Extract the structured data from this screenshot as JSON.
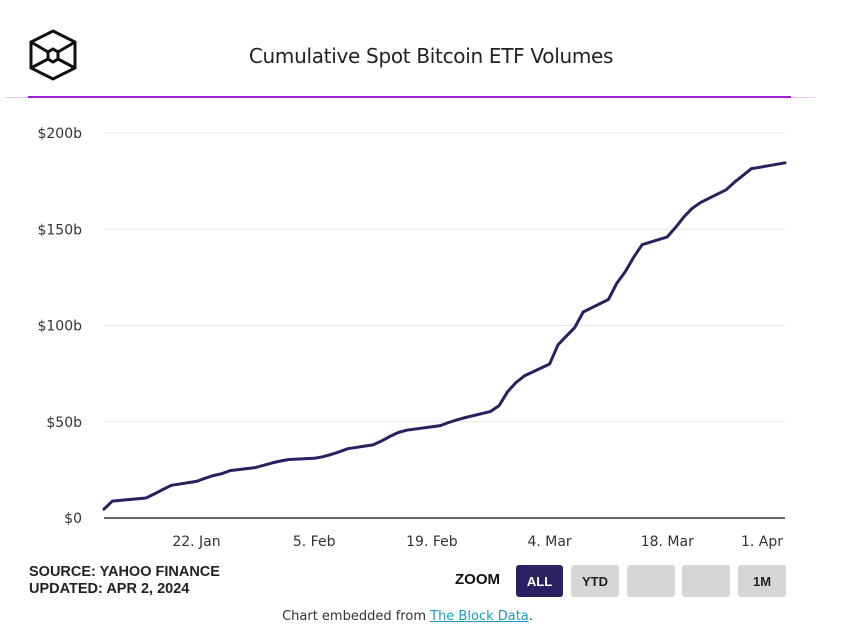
{
  "header": {
    "logo_icon": "the-block-cube-logo",
    "title": "Cumulative Spot Bitcoin ETF Volumes"
  },
  "footer": {
    "source_line": "SOURCE: YAHOO FINANCE",
    "updated_line": "UPDATED: APR 2, 2024",
    "embed_prefix": "Chart embedded from ",
    "embed_link": "The Block Data",
    "embed_suffix": "."
  },
  "zoom_controls": {
    "label": "ZOOM",
    "buttons": [
      {
        "label": "ALL",
        "active": true
      },
      {
        "label": "YTD",
        "active": false
      },
      {
        "label": "",
        "active": false
      },
      {
        "label": "",
        "active": false
      },
      {
        "label": "1M",
        "active": false
      }
    ]
  },
  "colors": {
    "line": "#2b2061",
    "accent_rule": "#9a1fd6",
    "active_button": "#2b2061",
    "link": "#1a9ac9"
  },
  "chart_data": {
    "type": "line",
    "title": "Cumulative Spot Bitcoin ETF Volumes",
    "xlabel": "",
    "ylabel": "",
    "ylim": [
      0,
      200
    ],
    "y_unit": "billion USD",
    "yticks": [
      {
        "value": 0,
        "label": "$0"
      },
      {
        "value": 50,
        "label": "$50b"
      },
      {
        "value": 100,
        "label": "$100b"
      },
      {
        "value": 150,
        "label": "$150b"
      },
      {
        "value": 200,
        "label": "$200b"
      }
    ],
    "xlim_days": [
      0,
      81
    ],
    "x_origin_date": "2024-01-11",
    "xticks": [
      {
        "day": 11,
        "label": "22. Jan"
      },
      {
        "day": 25,
        "label": "5. Feb"
      },
      {
        "day": 39,
        "label": "19. Feb"
      },
      {
        "day": 53,
        "label": "4. Mar"
      },
      {
        "day": 67,
        "label": "18. Mar"
      },
      {
        "day": 81,
        "label": "1. Apr"
      }
    ],
    "grid": true,
    "legend": "none",
    "series": [
      {
        "name": "Cumulative Volume",
        "points": [
          {
            "day": 0,
            "date": "2024-01-11",
            "value": 4.6
          },
          {
            "day": 1,
            "date": "2024-01-12",
            "value": 8.8
          },
          {
            "day": 5,
            "date": "2024-01-16",
            "value": 10.4
          },
          {
            "day": 6,
            "date": "2024-01-17",
            "value": 12.5
          },
          {
            "day": 7,
            "date": "2024-01-18",
            "value": 14.8
          },
          {
            "day": 8,
            "date": "2024-01-19",
            "value": 17.0
          },
          {
            "day": 11,
            "date": "2024-01-22",
            "value": 19.0
          },
          {
            "day": 12,
            "date": "2024-01-23",
            "value": 20.6
          },
          {
            "day": 13,
            "date": "2024-01-24",
            "value": 22.0
          },
          {
            "day": 14,
            "date": "2024-01-25",
            "value": 23.0
          },
          {
            "day": 15,
            "date": "2024-01-26",
            "value": 24.6
          },
          {
            "day": 18,
            "date": "2024-01-29",
            "value": 26.2
          },
          {
            "day": 19,
            "date": "2024-01-30",
            "value": 27.4
          },
          {
            "day": 20,
            "date": "2024-01-31",
            "value": 28.6
          },
          {
            "day": 21,
            "date": "2024-02-01",
            "value": 29.6
          },
          {
            "day": 22,
            "date": "2024-02-02",
            "value": 30.4
          },
          {
            "day": 25,
            "date": "2024-02-05",
            "value": 31.0
          },
          {
            "day": 26,
            "date": "2024-02-06",
            "value": 31.8
          },
          {
            "day": 27,
            "date": "2024-02-07",
            "value": 33.0
          },
          {
            "day": 28,
            "date": "2024-02-08",
            "value": 34.4
          },
          {
            "day": 29,
            "date": "2024-02-09",
            "value": 36.0
          },
          {
            "day": 32,
            "date": "2024-02-12",
            "value": 38.0
          },
          {
            "day": 33,
            "date": "2024-02-13",
            "value": 40.0
          },
          {
            "day": 34,
            "date": "2024-02-14",
            "value": 42.4
          },
          {
            "day": 35,
            "date": "2024-02-15",
            "value": 44.4
          },
          {
            "day": 36,
            "date": "2024-02-16",
            "value": 45.6
          },
          {
            "day": 40,
            "date": "2024-02-20",
            "value": 48.0
          },
          {
            "day": 41,
            "date": "2024-02-21",
            "value": 49.6
          },
          {
            "day": 42,
            "date": "2024-02-22",
            "value": 51.0
          },
          {
            "day": 43,
            "date": "2024-02-23",
            "value": 52.2
          },
          {
            "day": 46,
            "date": "2024-02-26",
            "value": 55.4
          },
          {
            "day": 47,
            "date": "2024-02-27",
            "value": 58.4
          },
          {
            "day": 48,
            "date": "2024-02-28",
            "value": 65.6
          },
          {
            "day": 49,
            "date": "2024-02-29",
            "value": 70.4
          },
          {
            "day": 50,
            "date": "2024-03-01",
            "value": 73.8
          },
          {
            "day": 53,
            "date": "2024-03-04",
            "value": 80.0
          },
          {
            "day": 54,
            "date": "2024-03-05",
            "value": 90.0
          },
          {
            "day": 55,
            "date": "2024-03-06",
            "value": 94.5
          },
          {
            "day": 56,
            "date": "2024-03-07",
            "value": 99.0
          },
          {
            "day": 57,
            "date": "2024-03-08",
            "value": 107.0
          },
          {
            "day": 60,
            "date": "2024-03-11",
            "value": 113.5
          },
          {
            "day": 61,
            "date": "2024-03-12",
            "value": 122.0
          },
          {
            "day": 62,
            "date": "2024-03-13",
            "value": 128.0
          },
          {
            "day": 63,
            "date": "2024-03-14",
            "value": 135.5
          },
          {
            "day": 64,
            "date": "2024-03-15",
            "value": 142.0
          },
          {
            "day": 67,
            "date": "2024-03-18",
            "value": 146.0
          },
          {
            "day": 68,
            "date": "2024-03-19",
            "value": 151.0
          },
          {
            "day": 69,
            "date": "2024-03-20",
            "value": 156.5
          },
          {
            "day": 70,
            "date": "2024-03-21",
            "value": 161.0
          },
          {
            "day": 71,
            "date": "2024-03-22",
            "value": 164.0
          },
          {
            "day": 74,
            "date": "2024-03-25",
            "value": 170.5
          },
          {
            "day": 75,
            "date": "2024-03-26",
            "value": 174.5
          },
          {
            "day": 76,
            "date": "2024-03-27",
            "value": 178.0
          },
          {
            "day": 77,
            "date": "2024-03-28",
            "value": 181.5
          },
          {
            "day": 78,
            "date": "2024-03-29",
            "value": 182.2
          },
          {
            "day": 81,
            "date": "2024-04-01",
            "value": 184.5
          }
        ]
      }
    ]
  }
}
